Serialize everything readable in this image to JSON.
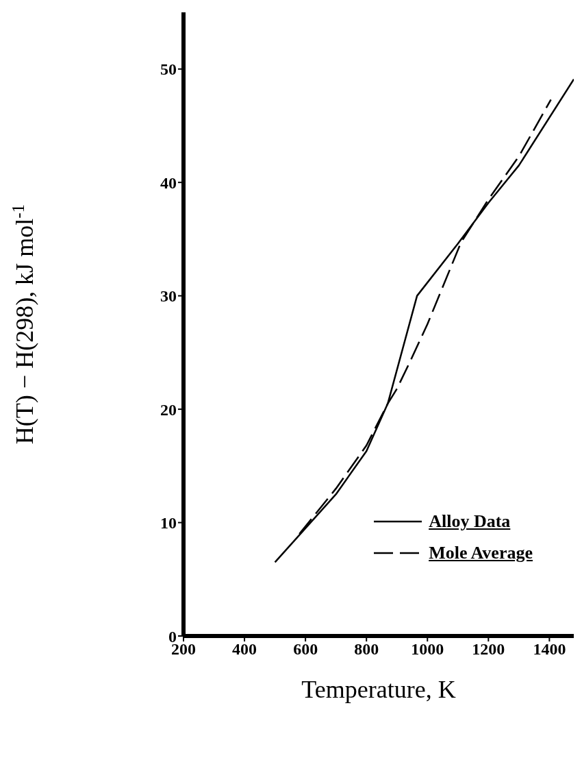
{
  "chart_data": {
    "type": "line",
    "xlabel": "Temperature, K",
    "ylabel": "H(T) − H(298), kJ mol$^{-1}$",
    "xlim": [
      200,
      1480
    ],
    "xticks": [
      200,
      400,
      600,
      800,
      1000,
      1200,
      1400
    ],
    "ylim": [
      0,
      55
    ],
    "yticks": [
      0,
      10,
      20,
      30,
      40,
      50
    ],
    "grid": false,
    "legend": "bottom right",
    "marker": "none",
    "series": [
      {
        "name": "Alloy Data",
        "color": "#000000",
        "line_style": "solid",
        "x": [
          500,
          700,
          800,
          870,
          966,
          1100,
          1200,
          1300,
          1480
        ],
        "values": [
          6.5,
          12.5,
          16.3,
          20.5,
          30,
          34.6,
          38.2,
          41.5,
          49.1
        ]
      },
      {
        "name": "Mole Average",
        "color": "#000000",
        "line_style": "dashed",
        "x": [
          580,
          700,
          800,
          870,
          900,
          943,
          1000,
          1110,
          1200,
          1300,
          1405
        ],
        "values": [
          9.0,
          13,
          16.8,
          20.5,
          21.8,
          24.2,
          27.5,
          34.7,
          38.5,
          42.3,
          47.3
        ]
      }
    ]
  }
}
